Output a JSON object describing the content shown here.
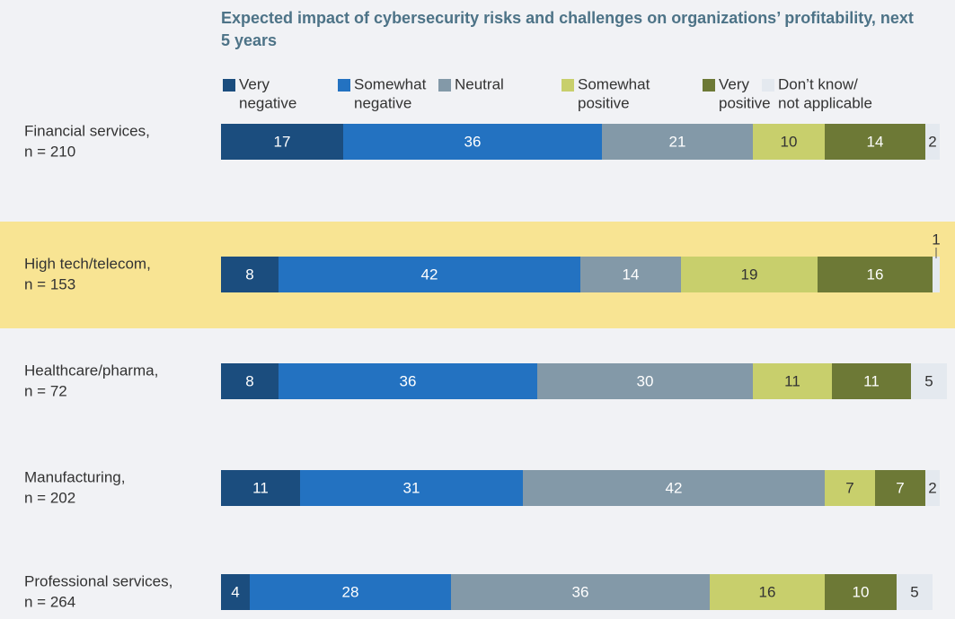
{
  "chart_data": {
    "type": "stacked_barh",
    "title": "Expected impact of cybersecurity risks and challenges on organizations’ profitability, next 5 years",
    "categories": [
      [
        "Financial services,",
        "n = 210"
      ],
      [
        "High tech/telecom,",
        "n = 153"
      ],
      [
        "Healthcare/pharma,",
        "n = 72"
      ],
      [
        "Manufacturing,",
        "n = 202"
      ],
      [
        "Professional services,",
        "n = 264"
      ]
    ],
    "highlighted_category": 1,
    "highlight_color": "#f8e493",
    "series": [
      {
        "name": [
          "Very",
          "negative"
        ],
        "color": "#1b4d7e",
        "values": [
          17,
          8,
          8,
          11,
          4
        ]
      },
      {
        "name": [
          "Somewhat",
          "negative"
        ],
        "color": "#2372c1",
        "values": [
          36,
          42,
          36,
          31,
          28
        ]
      },
      {
        "name": [
          "Neutral"
        ],
        "color": "#8399a8",
        "values": [
          21,
          14,
          30,
          42,
          36
        ]
      },
      {
        "name": [
          "Somewhat",
          "positive"
        ],
        "color": "#c8cf6c",
        "values": [
          10,
          19,
          11,
          7,
          16
        ]
      },
      {
        "name": [
          "Very",
          "positive"
        ],
        "color": "#6d7936",
        "values": [
          14,
          16,
          11,
          7,
          10
        ]
      },
      {
        "name": [
          "Don’t know/",
          "not applicable"
        ],
        "color": "#e4e9ef",
        "values": [
          2,
          1,
          5,
          2,
          5
        ]
      }
    ]
  }
}
